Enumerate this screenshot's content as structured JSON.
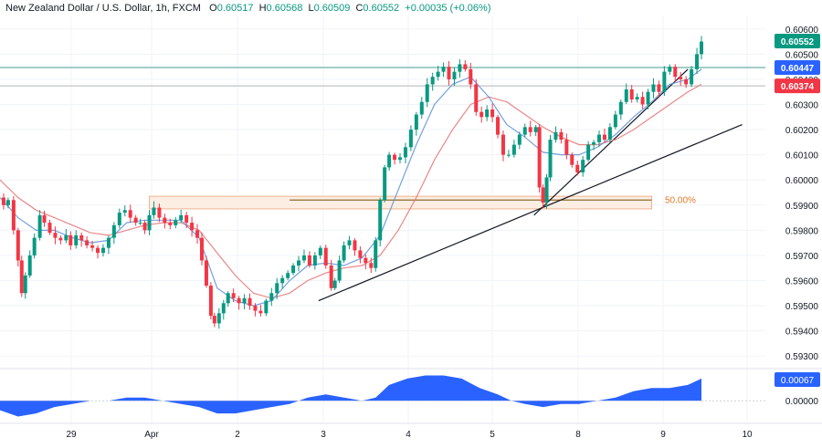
{
  "header": {
    "symbol": "New Zealand Dollar / U.S. Dollar, 1h, FXCM",
    "o_label": "O",
    "o": "0.60517",
    "h_label": "H",
    "h": "0.60568",
    "l_label": "L",
    "l": "0.60509",
    "c_label": "C",
    "c": "0.60552",
    "change": "+0.00035 (+0.06%)"
  },
  "colors": {
    "up": "#089981",
    "down": "#f23645",
    "ma_fast": "#5b8fd8",
    "ma_slow": "#e57373",
    "zone_fill": "#fdeee4",
    "zone_stroke": "#f0b48c",
    "fib_line": "#8d6b2e",
    "fib_label": "#e07a2a",
    "trendline": "#131722",
    "level_line": "#4a9d93",
    "histogram": "#2962ff"
  },
  "chart_data": {
    "type": "line",
    "subtype": "candlestick-with-indicators",
    "instrument": "NZD/USD",
    "timeframe": "1h",
    "x_tick_labels": [
      "29",
      "Apr",
      "2",
      "3",
      "4",
      "5",
      "8",
      "9",
      "10"
    ],
    "y_tick_labels": [
      "0.60600",
      "0.60500",
      "0.60400",
      "0.60300",
      "0.60200",
      "0.60100",
      "0.60000",
      "0.59900",
      "0.59800",
      "0.59700",
      "0.59600",
      "0.59500",
      "0.59400",
      "0.59300"
    ],
    "ylim": [
      0.5925,
      0.6065
    ],
    "price_labels": [
      {
        "value": "0.60552",
        "color": "#089981"
      },
      {
        "value": "0.60447",
        "color": "#2962ff"
      },
      {
        "value": "0.60374",
        "color": "#f23645"
      }
    ],
    "horizontal_levels": [
      0.60447,
      0.60374
    ],
    "fib_level": {
      "label": "50.00%",
      "value": 0.5992,
      "zone": [
        0.59885,
        0.59935
      ]
    },
    "trendlines": [
      {
        "points": [
          [
            "Apr 3 ~02:00",
            0.5952
          ],
          [
            "Apr 9 ~16:00",
            0.6022
          ]
        ]
      },
      {
        "points": [
          [
            "Apr 5 ~16:00",
            0.5986
          ],
          [
            "Apr 9 ~12:00",
            0.6044
          ]
        ]
      }
    ],
    "close_path": [
      [
        0,
        0.5993
      ],
      [
        4,
        0.599
      ],
      [
        9,
        0.5992
      ],
      [
        15,
        0.598
      ],
      [
        20,
        0.5968
      ],
      [
        24,
        0.5955
      ],
      [
        28,
        0.5962
      ],
      [
        33,
        0.597
      ],
      [
        38,
        0.5977
      ],
      [
        44,
        0.5986
      ],
      [
        49,
        0.5983
      ],
      [
        55,
        0.5979
      ],
      [
        61,
        0.5977
      ],
      [
        67,
        0.5976
      ],
      [
        73,
        0.5978
      ],
      [
        78,
        0.5974
      ],
      [
        84,
        0.5978
      ],
      [
        90,
        0.5976
      ],
      [
        96,
        0.5974
      ],
      [
        102,
        0.5973
      ],
      [
        108,
        0.5971
      ],
      [
        114,
        0.5973
      ],
      [
        120,
        0.5977
      ],
      [
        126,
        0.5982
      ],
      [
        132,
        0.5987
      ],
      [
        138,
        0.5988
      ],
      [
        144,
        0.5985
      ],
      [
        150,
        0.5983
      ],
      [
        155,
        0.5983
      ],
      [
        160,
        0.598
      ],
      [
        165,
        0.5986
      ],
      [
        170,
        0.5989
      ],
      [
        176,
        0.5985
      ],
      [
        182,
        0.5983
      ],
      [
        188,
        0.5982
      ],
      [
        194,
        0.5984
      ],
      [
        200,
        0.5986
      ],
      [
        206,
        0.5983
      ],
      [
        212,
        0.598
      ],
      [
        218,
        0.5977
      ],
      [
        223,
        0.5968
      ],
      [
        228,
        0.5958
      ],
      [
        233,
        0.5946
      ],
      [
        237,
        0.5943
      ],
      [
        242,
        0.5947
      ],
      [
        247,
        0.5951
      ],
      [
        252,
        0.5955
      ],
      [
        258,
        0.5953
      ],
      [
        264,
        0.5951
      ],
      [
        270,
        0.5953
      ],
      [
        276,
        0.595
      ],
      [
        282,
        0.5948
      ],
      [
        288,
        0.5947
      ],
      [
        294,
        0.5952
      ],
      [
        300,
        0.5955
      ],
      [
        306,
        0.5959
      ],
      [
        312,
        0.5961
      ],
      [
        318,
        0.5963
      ],
      [
        324,
        0.5966
      ],
      [
        330,
        0.5968
      ],
      [
        336,
        0.597
      ],
      [
        342,
        0.5966
      ],
      [
        348,
        0.597
      ],
      [
        354,
        0.5973
      ],
      [
        360,
        0.5966
      ],
      [
        366,
        0.5957
      ],
      [
        370,
        0.596
      ],
      [
        375,
        0.5968
      ],
      [
        380,
        0.5974
      ],
      [
        386,
        0.5976
      ],
      [
        392,
        0.5972
      ],
      [
        398,
        0.5969
      ],
      [
        404,
        0.5967
      ],
      [
        410,
        0.5965
      ],
      [
        415,
        0.5976
      ],
      [
        420,
        0.5992
      ],
      [
        425,
        0.6005
      ],
      [
        430,
        0.601
      ],
      [
        436,
        0.6008
      ],
      [
        442,
        0.6009
      ],
      [
        448,
        0.6013
      ],
      [
        454,
        0.602
      ],
      [
        460,
        0.6026
      ],
      [
        466,
        0.6031
      ],
      [
        472,
        0.6038
      ],
      [
        478,
        0.6041
      ],
      [
        484,
        0.6043
      ],
      [
        490,
        0.6045
      ],
      [
        496,
        0.604
      ],
      [
        502,
        0.6043
      ],
      [
        508,
        0.6046
      ],
      [
        514,
        0.6044
      ],
      [
        520,
        0.6038
      ],
      [
        526,
        0.6027
      ],
      [
        532,
        0.6025
      ],
      [
        538,
        0.6028
      ],
      [
        544,
        0.6025
      ],
      [
        550,
        0.6018
      ],
      [
        556,
        0.601
      ],
      [
        562,
        0.601
      ],
      [
        568,
        0.6014
      ],
      [
        574,
        0.6018
      ],
      [
        580,
        0.6021
      ],
      [
        586,
        0.6019
      ],
      [
        592,
        0.6021
      ],
      [
        596,
        0.5997
      ],
      [
        600,
        0.5991
      ],
      [
        604,
        0.6001
      ],
      [
        608,
        0.6016
      ],
      [
        614,
        0.6019
      ],
      [
        620,
        0.6016
      ],
      [
        626,
        0.601
      ],
      [
        632,
        0.6006
      ],
      [
        638,
        0.6003
      ],
      [
        644,
        0.6008
      ],
      [
        650,
        0.6014
      ],
      [
        656,
        0.6015
      ],
      [
        662,
        0.6018
      ],
      [
        668,
        0.6016
      ],
      [
        674,
        0.6021
      ],
      [
        680,
        0.6026
      ],
      [
        686,
        0.6031
      ],
      [
        692,
        0.6036
      ],
      [
        698,
        0.6032
      ],
      [
        704,
        0.6033
      ],
      [
        710,
        0.603
      ],
      [
        716,
        0.6035
      ],
      [
        722,
        0.6038
      ],
      [
        728,
        0.6035
      ],
      [
        734,
        0.6043
      ],
      [
        740,
        0.6045
      ],
      [
        746,
        0.6041
      ],
      [
        752,
        0.604
      ],
      [
        758,
        0.6038
      ],
      [
        764,
        0.6044
      ],
      [
        770,
        0.605
      ],
      [
        775,
        0.6055
      ]
    ],
    "ma_fast_path": [
      [
        0,
        0.5993
      ],
      [
        20,
        0.5985
      ],
      [
        40,
        0.598
      ],
      [
        60,
        0.598
      ],
      [
        80,
        0.5977
      ],
      [
        100,
        0.5975
      ],
      [
        120,
        0.5976
      ],
      [
        140,
        0.5983
      ],
      [
        160,
        0.5984
      ],
      [
        180,
        0.5984
      ],
      [
        200,
        0.5984
      ],
      [
        220,
        0.5977
      ],
      [
        240,
        0.5957
      ],
      [
        260,
        0.5952
      ],
      [
        280,
        0.595
      ],
      [
        300,
        0.5952
      ],
      [
        320,
        0.596
      ],
      [
        340,
        0.5966
      ],
      [
        360,
        0.5967
      ],
      [
        380,
        0.5966
      ],
      [
        400,
        0.5969
      ],
      [
        420,
        0.5978
      ],
      [
        440,
        0.5996
      ],
      [
        460,
        0.6014
      ],
      [
        480,
        0.603
      ],
      [
        500,
        0.6038
      ],
      [
        520,
        0.6041
      ],
      [
        540,
        0.6033
      ],
      [
        560,
        0.6022
      ],
      [
        580,
        0.6017
      ],
      [
        600,
        0.6011
      ],
      [
        620,
        0.601
      ],
      [
        640,
        0.601
      ],
      [
        660,
        0.6013
      ],
      [
        680,
        0.6018
      ],
      [
        700,
        0.6025
      ],
      [
        720,
        0.6031
      ],
      [
        740,
        0.6038
      ],
      [
        760,
        0.604
      ],
      [
        775,
        0.6044
      ]
    ],
    "ma_slow_path": [
      [
        0,
        0.6
      ],
      [
        20,
        0.5993
      ],
      [
        40,
        0.5988
      ],
      [
        60,
        0.5985
      ],
      [
        80,
        0.5982
      ],
      [
        100,
        0.5979
      ],
      [
        120,
        0.5978
      ],
      [
        140,
        0.598
      ],
      [
        160,
        0.5982
      ],
      [
        180,
        0.5983
      ],
      [
        200,
        0.5983
      ],
      [
        220,
        0.598
      ],
      [
        240,
        0.5971
      ],
      [
        260,
        0.5962
      ],
      [
        280,
        0.5955
      ],
      [
        300,
        0.5953
      ],
      [
        320,
        0.5955
      ],
      [
        340,
        0.596
      ],
      [
        360,
        0.5963
      ],
      [
        380,
        0.5965
      ],
      [
        400,
        0.5966
      ],
      [
        420,
        0.597
      ],
      [
        440,
        0.598
      ],
      [
        460,
        0.5993
      ],
      [
        480,
        0.6008
      ],
      [
        500,
        0.602
      ],
      [
        520,
        0.603
      ],
      [
        540,
        0.6033
      ],
      [
        560,
        0.6031
      ],
      [
        580,
        0.6026
      ],
      [
        600,
        0.6021
      ],
      [
        620,
        0.6017
      ],
      [
        640,
        0.6014
      ],
      [
        660,
        0.6014
      ],
      [
        680,
        0.6016
      ],
      [
        700,
        0.602
      ],
      [
        720,
        0.6025
      ],
      [
        740,
        0.603
      ],
      [
        760,
        0.6035
      ],
      [
        775,
        0.6038
      ]
    ],
    "oscillator": {
      "label": "0.00067",
      "zero_label": "0.00000",
      "ylim": [
        -0.0006,
        0.0009
      ],
      "path": [
        [
          0,
          -0.0003
        ],
        [
          20,
          -0.0005
        ],
        [
          40,
          -0.0004
        ],
        [
          60,
          -0.0002
        ],
        [
          80,
          -0.0001
        ],
        [
          100,
          0.0
        ],
        [
          120,
          0.0
        ],
        [
          140,
          0.0001
        ],
        [
          160,
          0.0001
        ],
        [
          180,
          0.0
        ],
        [
          200,
          -0.0001
        ],
        [
          220,
          -0.0002
        ],
        [
          240,
          -0.0004
        ],
        [
          260,
          -0.0004
        ],
        [
          280,
          -0.0003
        ],
        [
          300,
          -0.0002
        ],
        [
          320,
          -0.0001
        ],
        [
          340,
          0.0001
        ],
        [
          360,
          0.0002
        ],
        [
          380,
          0.0001
        ],
        [
          400,
          0.0
        ],
        [
          415,
          0.0001
        ],
        [
          430,
          0.0005
        ],
        [
          450,
          0.0007
        ],
        [
          470,
          0.0008
        ],
        [
          490,
          0.0008
        ],
        [
          510,
          0.0007
        ],
        [
          530,
          0.0004
        ],
        [
          550,
          0.0002
        ],
        [
          565,
          0.0
        ],
        [
          580,
          -0.0001
        ],
        [
          600,
          -0.0002
        ],
        [
          620,
          -0.0001
        ],
        [
          640,
          -0.0001
        ],
        [
          660,
          0.0
        ],
        [
          680,
          0.0001
        ],
        [
          700,
          0.0003
        ],
        [
          720,
          0.0004
        ],
        [
          740,
          0.0004
        ],
        [
          760,
          0.0005
        ],
        [
          775,
          0.0007
        ]
      ]
    }
  }
}
